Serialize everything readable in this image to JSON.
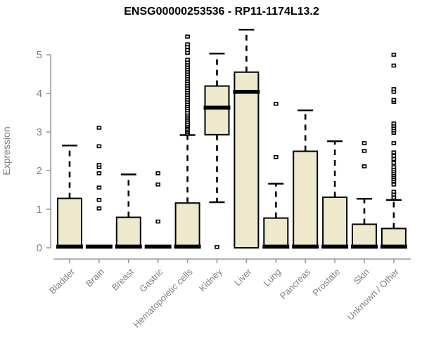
{
  "page": {
    "title": "ENSG00000253536 - RP11-1174L13.2"
  },
  "chart_data": {
    "type": "boxplot",
    "title": "ENSG00000253536 - RP11-1174L13.2",
    "xlabel": "",
    "ylabel": "Expression",
    "ylim": [
      0,
      5.8
    ],
    "yticks": [
      0,
      1,
      2,
      3,
      4,
      5
    ],
    "grid": false,
    "legend": "none",
    "colors": {
      "box_fill": "#EEE8CD",
      "box_stroke": "#000000",
      "median": "#000000",
      "whisker": "#000000",
      "axis": "#9a9a9a",
      "tick_text": "#808080",
      "title_text": "#000000"
    },
    "categories": [
      "Bladder",
      "Brain",
      "Breast",
      "Gastric",
      "Hematopoietic cells",
      "Kidney",
      "Liver",
      "Lung",
      "Pancreas",
      "Prostate",
      "Skin",
      "Unknown / Other"
    ],
    "series": [
      {
        "name": "Bladder",
        "whisker_low": 0,
        "q1": 0,
        "median": 0.03,
        "q3": 1.28,
        "whisker_high": 2.65,
        "outliers": []
      },
      {
        "name": "Brain",
        "whisker_low": 0.03,
        "q1": 0.03,
        "median": 0.03,
        "q3": 0.03,
        "whisker_high": 0.03,
        "outliers": [
          1.02,
          1.24,
          1.56,
          1.93,
          2.09,
          2.15,
          2.63,
          3.11
        ]
      },
      {
        "name": "Breast",
        "whisker_low": 0,
        "q1": 0,
        "median": 0.03,
        "q3": 0.79,
        "whisker_high": 1.9,
        "outliers": []
      },
      {
        "name": "Gastric",
        "whisker_low": 0.03,
        "q1": 0.03,
        "median": 0.03,
        "q3": 0.03,
        "whisker_high": 0.03,
        "outliers": [
          0.68,
          1.64,
          1.93
        ]
      },
      {
        "name": "Hematopoietic cells",
        "whisker_low": 0,
        "q1": 0,
        "median": 0.03,
        "q3": 1.16,
        "whisker_high": 2.92,
        "outliers": [
          2.96,
          3.0,
          3.04,
          3.08,
          3.12,
          3.16,
          3.2,
          3.25,
          3.3,
          3.35,
          3.4,
          3.45,
          3.5,
          3.56,
          3.62,
          3.67,
          3.72,
          3.78,
          3.84,
          3.9,
          3.96,
          4.02,
          4.08,
          4.14,
          4.2,
          4.26,
          4.32,
          4.38,
          4.44,
          4.5,
          4.56,
          4.62,
          4.68,
          4.74,
          4.8,
          4.87,
          5.05,
          5.12,
          5.2,
          5.27,
          5.47
        ]
      },
      {
        "name": "Kidney",
        "whisker_low": 1.18,
        "q1": 2.93,
        "median": 3.63,
        "q3": 4.19,
        "whisker_high": 5.03,
        "outliers": [
          0.02
        ]
      },
      {
        "name": "Liver",
        "whisker_low": 0,
        "q1": 0,
        "median": 4.04,
        "q3": 4.55,
        "whisker_high": 5.65,
        "outliers": []
      },
      {
        "name": "Lung",
        "whisker_low": 0,
        "q1": 0,
        "median": 0.03,
        "q3": 0.77,
        "whisker_high": 1.66,
        "outliers": [
          2.35,
          3.73
        ]
      },
      {
        "name": "Pancreas",
        "whisker_low": 0,
        "q1": 0,
        "median": 0.03,
        "q3": 2.5,
        "whisker_high": 3.56,
        "outliers": []
      },
      {
        "name": "Prostate",
        "whisker_low": 0,
        "q1": 0,
        "median": 0.03,
        "q3": 1.31,
        "whisker_high": 2.76,
        "outliers": []
      },
      {
        "name": "Skin",
        "whisker_low": 0,
        "q1": 0,
        "median": 0.03,
        "q3": 0.61,
        "whisker_high": 1.27,
        "outliers": [
          2.11,
          2.51,
          2.71
        ]
      },
      {
        "name": "Unknown / Other",
        "whisker_low": 0,
        "q1": 0,
        "median": 0.03,
        "q3": 0.5,
        "whisker_high": 1.24,
        "outliers": [
          1.3,
          1.38,
          1.45,
          1.64,
          1.73,
          1.78,
          1.83,
          1.88,
          1.93,
          1.98,
          2.03,
          2.09,
          2.2,
          2.3,
          2.38,
          2.47,
          2.71,
          2.98,
          3.04,
          3.1,
          3.16,
          3.22,
          3.78,
          3.83,
          4.04,
          4.11,
          4.72,
          5.0
        ]
      }
    ]
  }
}
